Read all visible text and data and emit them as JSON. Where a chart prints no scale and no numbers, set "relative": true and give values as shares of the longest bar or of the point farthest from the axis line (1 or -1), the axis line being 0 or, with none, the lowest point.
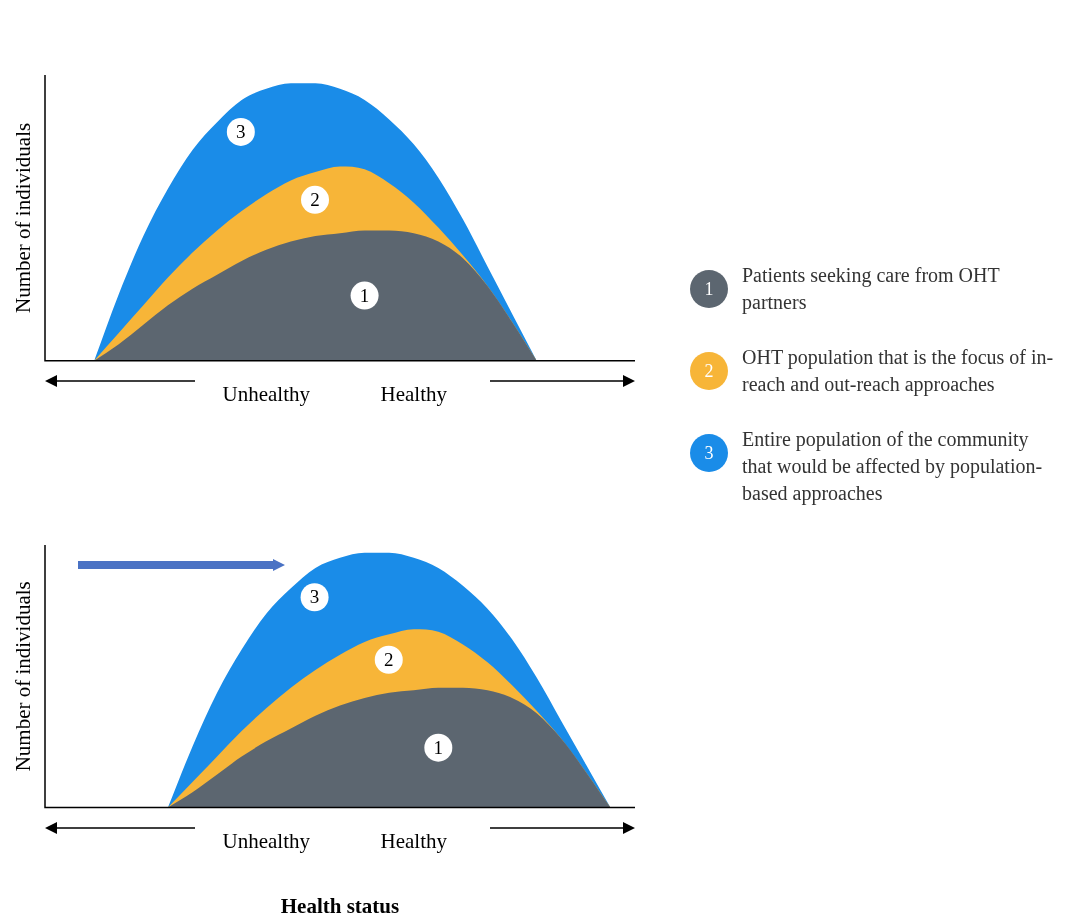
{
  "chart_data": [
    {
      "type": "area",
      "relative": true,
      "ylabel": "Number of individuals",
      "legend": "right",
      "grid": false,
      "categories": [
        null,
        null,
        null,
        null,
        null,
        null,
        null,
        null,
        null,
        "Unhealthy",
        null,
        null,
        null,
        null,
        null,
        "Healthy",
        null,
        null,
        null,
        null,
        null,
        null,
        null,
        null,
        null
      ],
      "series": [
        {
          "name": "Patients seeking care from OHT partners",
          "color": "#5c6670",
          "values": [
            null,
            null,
            0,
            0.06,
            0.13,
            0.2,
            0.26,
            0.31,
            0.36,
            0.4,
            0.43,
            0.45,
            0.46,
            0.47,
            0.47,
            0.46,
            0.43,
            0.37,
            0.27,
            0.14,
            0,
            null,
            null,
            null,
            null
          ]
        },
        {
          "name": "OHT population that is the focus of in-reach and out-reach approaches",
          "color": "#f7b538",
          "values": [
            null,
            null,
            0,
            0.1,
            0.2,
            0.3,
            0.39,
            0.47,
            0.54,
            0.6,
            0.65,
            0.68,
            0.7,
            0.69,
            0.64,
            0.57,
            0.48,
            0.38,
            0.27,
            0.14,
            0,
            null,
            null,
            null,
            null
          ]
        },
        {
          "name": "Entire population of the community that would be affected by population-based approaches",
          "color": "#1a8ce8",
          "values": [
            null,
            null,
            0,
            0.24,
            0.45,
            0.62,
            0.76,
            0.86,
            0.94,
            0.98,
            1,
            1,
            0.98,
            0.94,
            0.87,
            0.78,
            0.66,
            0.51,
            0.34,
            0.17,
            0,
            null,
            null,
            null,
            null
          ]
        }
      ],
      "annotations": [
        "1",
        "2",
        "3"
      ]
    },
    {
      "type": "area",
      "relative": true,
      "ylabel": "Number of individuals",
      "xlabel": "Health status",
      "legend": false,
      "grid": false,
      "categories": [
        null,
        null,
        null,
        null,
        null,
        null,
        null,
        null,
        null,
        "Unhealthy",
        null,
        null,
        null,
        null,
        null,
        "Healthy",
        null,
        null,
        null,
        null,
        null,
        null,
        null,
        null,
        null
      ],
      "series": [
        {
          "color": "#5c6670",
          "values": [
            null,
            null,
            null,
            null,
            null,
            0,
            0.06,
            0.13,
            0.2,
            0.26,
            0.31,
            0.36,
            0.4,
            0.43,
            0.45,
            0.46,
            0.47,
            0.47,
            0.46,
            0.43,
            0.37,
            0.27,
            0.14,
            0,
            null
          ]
        },
        {
          "color": "#f7b538",
          "values": [
            null,
            null,
            null,
            null,
            null,
            0,
            0.1,
            0.2,
            0.3,
            0.39,
            0.47,
            0.54,
            0.6,
            0.65,
            0.68,
            0.7,
            0.69,
            0.64,
            0.57,
            0.48,
            0.38,
            0.27,
            0.14,
            0,
            null
          ]
        },
        {
          "color": "#1a8ce8",
          "values": [
            null,
            null,
            null,
            null,
            null,
            0,
            0.24,
            0.45,
            0.62,
            0.76,
            0.86,
            0.94,
            0.98,
            1,
            1,
            0.98,
            0.94,
            0.87,
            0.78,
            0.66,
            0.51,
            0.34,
            0.17,
            0,
            null
          ]
        }
      ],
      "annotations": [
        "1",
        "2",
        "3"
      ]
    }
  ]
}
